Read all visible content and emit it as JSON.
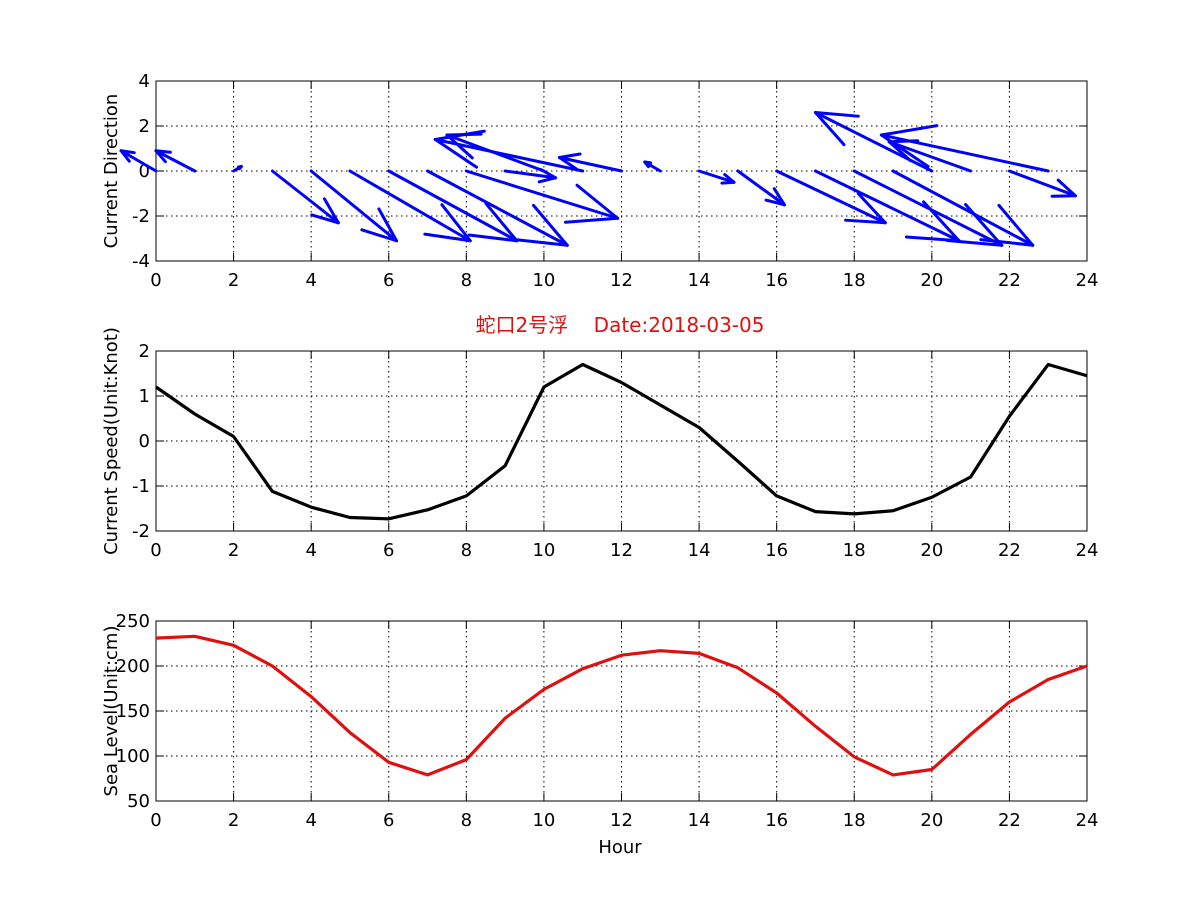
{
  "figure": {
    "title": "蛇口2号浮    Date:2018-03-05",
    "title_color": "#e01010",
    "xlabel": "Hour"
  },
  "chart_data": [
    {
      "type": "quiver",
      "ylabel": "Current Direction",
      "xlim": [
        0,
        24
      ],
      "ylim": [
        -4,
        4
      ],
      "xticks": [
        0,
        2,
        4,
        6,
        8,
        10,
        12,
        14,
        16,
        18,
        20,
        22,
        24
      ],
      "yticks": [
        -4,
        -2,
        0,
        2,
        4
      ],
      "grid": true,
      "color": "#0000ff",
      "x": [
        0,
        1,
        2,
        3,
        4,
        5,
        6,
        7,
        8,
        9,
        10,
        11,
        12,
        13,
        14,
        15,
        16,
        17,
        18,
        19,
        20,
        21,
        22,
        23
      ],
      "u": [
        -0.9,
        -1,
        0.2,
        1.7,
        2.2,
        3.1,
        3.3,
        3.6,
        3.9,
        1.3,
        -2.5,
        -3.8,
        -1.6,
        -0.4,
        0.9,
        1.2,
        2.8,
        3.7,
        3.8,
        3.6,
        -3,
        -2.1,
        1.7,
        -4.3
      ],
      "v": [
        0.9,
        0.9,
        0.2,
        -2.3,
        -3.1,
        -3.1,
        -3.1,
        -3.3,
        -2.1,
        -0.3,
        1.6,
        1.4,
        0.6,
        0.4,
        -0.5,
        -1.5,
        -2.3,
        -3.1,
        -3.3,
        -3.3,
        2.6,
        1.3,
        -1.1,
        1.6
      ]
    },
    {
      "type": "line",
      "ylabel": "Current Speed(Unit:Knot)",
      "xlim": [
        0,
        24
      ],
      "ylim": [
        -2,
        2
      ],
      "xticks": [
        0,
        2,
        4,
        6,
        8,
        10,
        12,
        14,
        16,
        18,
        20,
        22,
        24
      ],
      "yticks": [
        -2,
        -1,
        0,
        1,
        2
      ],
      "grid": true,
      "color": "#000000",
      "x": [
        0,
        1,
        2,
        3,
        4,
        5,
        6,
        7,
        8,
        9,
        10,
        11,
        12,
        13,
        14,
        15,
        16,
        17,
        18,
        19,
        20,
        21,
        22,
        23,
        24
      ],
      "y": [
        1.2,
        0.6,
        0.1,
        -1.12,
        -1.47,
        -1.7,
        -1.73,
        -1.53,
        -1.22,
        -0.55,
        1.2,
        1.7,
        1.3,
        0.8,
        0.3,
        -0.45,
        -1.22,
        -1.57,
        -1.62,
        -1.55,
        -1.25,
        -0.8,
        0.55,
        1.7,
        1.45
      ]
    },
    {
      "type": "line",
      "ylabel": "Sea Level(Unit:cm)",
      "xlabel": "Hour",
      "xlim": [
        0,
        24
      ],
      "ylim": [
        50,
        250
      ],
      "xticks": [
        0,
        2,
        4,
        6,
        8,
        10,
        12,
        14,
        16,
        18,
        20,
        22,
        24
      ],
      "yticks": [
        50,
        100,
        150,
        200,
        250
      ],
      "grid": true,
      "color": "#e01010",
      "x": [
        0,
        1,
        2,
        3,
        4,
        5,
        6,
        7,
        8,
        9,
        10,
        11,
        12,
        13,
        14,
        15,
        16,
        17,
        18,
        19,
        20,
        21,
        22,
        23,
        24
      ],
      "y": [
        231,
        233,
        223,
        200,
        166,
        126,
        93,
        79,
        96,
        142,
        174,
        197,
        212,
        217,
        214,
        198,
        170,
        133,
        99,
        79,
        85,
        124,
        160,
        185,
        200
      ]
    }
  ]
}
